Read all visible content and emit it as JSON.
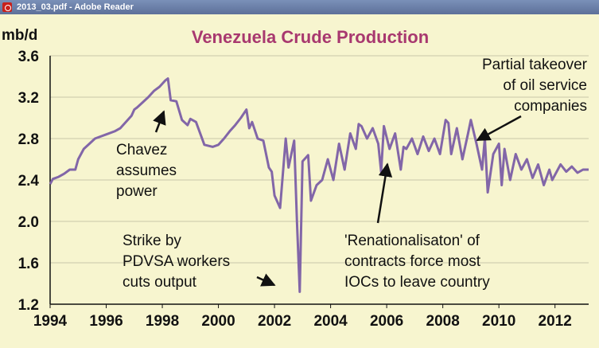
{
  "window": {
    "title": "2013_03.pdf - Adobe Reader"
  },
  "colors": {
    "background": "#f7f5cf",
    "line": "#8266a8",
    "title": "#a8386f",
    "text": "#111111",
    "grid": "#c8c6a8"
  },
  "chart_data": {
    "type": "line",
    "title": "Venezuela Crude Production",
    "ylabel": "mb/d",
    "xlabel": "",
    "xlim": [
      1994,
      2013.2
    ],
    "ylim": [
      1.2,
      3.6
    ],
    "xticks": [
      "1994",
      "1996",
      "1998",
      "2000",
      "2002",
      "2004",
      "2006",
      "2008",
      "2010",
      "2012"
    ],
    "yticks": [
      "3.6",
      "3.2",
      "2.8",
      "2.4",
      "2.0",
      "1.6",
      "1.2"
    ],
    "grid": "horizontal",
    "series": [
      {
        "x": [
          1994.0,
          1994.1,
          1994.3,
          1994.5,
          1994.7,
          1994.9,
          1995.0,
          1995.2,
          1995.4,
          1995.6,
          1995.8,
          1996.0,
          1996.3,
          1996.5,
          1996.7,
          1996.9,
          1997.0,
          1997.1,
          1997.3,
          1997.5,
          1997.7,
          1997.9,
          1998.1,
          1998.2,
          1998.3,
          1998.5,
          1998.7,
          1998.9,
          1999.0,
          1999.2,
          1999.5,
          1999.8,
          2000.0,
          2000.2,
          2000.4,
          2000.6,
          2000.8,
          2001.0,
          2001.1,
          2001.2,
          2001.4,
          2001.6,
          2001.8,
          2001.9,
          2002.0,
          2002.2,
          2002.4,
          2002.5,
          2002.7,
          2002.8,
          2002.9,
          2003.0,
          2003.2,
          2003.3,
          2003.5,
          2003.7,
          2003.9,
          2004.1,
          2004.3,
          2004.5,
          2004.7,
          2004.9,
          2005.0,
          2005.1,
          2005.3,
          2005.5,
          2005.7,
          2005.8,
          2005.9,
          2006.1,
          2006.3,
          2006.5,
          2006.6,
          2006.7,
          2006.9,
          2007.1,
          2007.3,
          2007.5,
          2007.7,
          2007.9,
          2008.1,
          2008.2,
          2008.3,
          2008.5,
          2008.7,
          2008.9,
          2009.0,
          2009.2,
          2009.4,
          2009.5,
          2009.6,
          2009.8,
          2010.0,
          2010.1,
          2010.2,
          2010.4,
          2010.6,
          2010.8,
          2011.0,
          2011.2,
          2011.4,
          2011.6,
          2011.8,
          2011.9,
          2012.0,
          2012.2,
          2012.4,
          2012.6,
          2012.8,
          2013.0,
          2013.2
        ],
        "values": [
          2.36,
          2.41,
          2.43,
          2.46,
          2.5,
          2.5,
          2.6,
          2.7,
          2.75,
          2.8,
          2.82,
          2.84,
          2.87,
          2.9,
          2.96,
          3.02,
          3.08,
          3.1,
          3.15,
          3.2,
          3.26,
          3.3,
          3.36,
          3.38,
          3.17,
          3.16,
          2.98,
          2.93,
          2.99,
          2.96,
          2.74,
          2.72,
          2.74,
          2.8,
          2.87,
          2.93,
          3.0,
          3.08,
          2.9,
          2.96,
          2.8,
          2.78,
          2.52,
          2.48,
          2.25,
          2.13,
          2.8,
          2.52,
          2.78,
          2.0,
          1.32,
          2.58,
          2.64,
          2.2,
          2.35,
          2.4,
          2.6,
          2.4,
          2.75,
          2.5,
          2.85,
          2.7,
          2.94,
          2.92,
          2.8,
          2.9,
          2.75,
          2.48,
          2.92,
          2.7,
          2.85,
          2.5,
          2.72,
          2.7,
          2.8,
          2.65,
          2.82,
          2.68,
          2.8,
          2.65,
          2.98,
          2.95,
          2.65,
          2.9,
          2.6,
          2.85,
          2.98,
          2.75,
          2.5,
          2.8,
          2.28,
          2.65,
          2.75,
          2.35,
          2.7,
          2.4,
          2.65,
          2.5,
          2.6,
          2.42,
          2.55,
          2.35,
          2.5,
          2.4,
          2.45,
          2.55,
          2.48,
          2.53,
          2.47,
          2.5,
          2.5
        ]
      }
    ],
    "annotations": [
      {
        "id": "chavez",
        "lines": [
          "Chavez",
          "assumes",
          " power"
        ]
      },
      {
        "id": "strike",
        "lines": [
          "Strike by",
          "PDVSA workers",
          "cuts output"
        ]
      },
      {
        "id": "renationalisation",
        "lines": [
          "'Renationalisaton' of",
          "contracts force most",
          "IOCs to leave country"
        ]
      },
      {
        "id": "takeover",
        "lines": [
          "Partial takeover",
          "of oil service",
          "companies"
        ]
      }
    ]
  }
}
